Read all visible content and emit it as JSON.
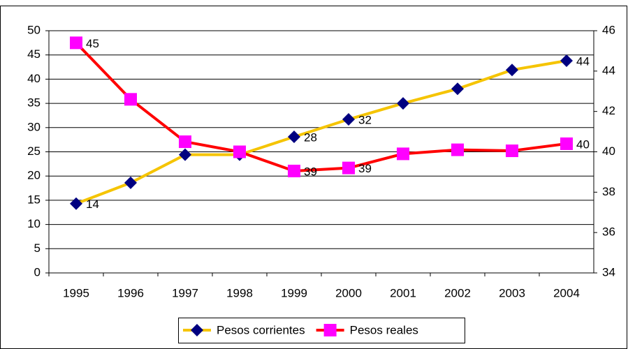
{
  "chart_data": {
    "type": "line",
    "categories": [
      "1995",
      "1996",
      "1997",
      "1998",
      "1999",
      "2000",
      "2001",
      "2002",
      "2003",
      "2004"
    ],
    "series": [
      {
        "name": "Pesos corrientes",
        "color": "#f5c400",
        "marker_color": "#000080",
        "marker": "diamond",
        "axis": "y",
        "values": [
          14.3,
          18.6,
          24.4,
          24.4,
          28.1,
          31.7,
          35,
          38,
          41.9,
          43.8
        ],
        "value_labels": [
          "14",
          null,
          null,
          null,
          "28",
          "32",
          null,
          null,
          null,
          "44"
        ]
      },
      {
        "name": "Pesos reales",
        "color": "#ff0000",
        "marker_color": "#ff00ff",
        "marker": "square",
        "axis": "y2",
        "values": [
          45.4,
          42.6,
          40.5,
          40,
          39.05,
          39.2,
          39.9,
          40.1,
          40.05,
          40.4
        ],
        "value_labels": [
          "45",
          null,
          null,
          null,
          "39",
          "39",
          null,
          null,
          null,
          "40"
        ]
      }
    ],
    "ylim": [
      0,
      50
    ],
    "yticks": [
      0,
      5,
      10,
      15,
      20,
      25,
      30,
      35,
      40,
      45,
      50
    ],
    "y2lim": [
      34,
      46
    ],
    "y2ticks": [
      34,
      36,
      38,
      40,
      42,
      44,
      46
    ],
    "grid": true,
    "legend": "bottom"
  }
}
